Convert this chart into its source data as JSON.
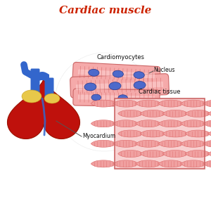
{
  "title": "Cardiac muscle",
  "title_color": "#cc2200",
  "title_fontsize": 11,
  "bg_color": "#ffffff",
  "label_cardiomyocytes": "Cardiomyocytes",
  "label_nucleus": "Nucleus",
  "label_myocardium": "Myocardium",
  "label_cardiac_tissue": "Cardiac tissue",
  "fiber_color": "#f5aaaa",
  "fiber_light": "#fdd0d0",
  "fiber_stripe_color": "#cc5555",
  "fiber_border_color": "#cc6666",
  "nucleus_color": "#4466cc",
  "nucleus_edge": "#223388",
  "heart_red": "#cc1111",
  "heart_dark_red": "#991100",
  "heart_mid_red": "#bb2222",
  "heart_blue": "#3366cc",
  "heart_blue_light": "#5588dd",
  "heart_yellow": "#e8c84a",
  "heart_yellow_dark": "#c8a020",
  "tissue_bg": "#f8d0d0",
  "tissue_fiber": "#f0a0a0",
  "tissue_stripe": "#dd6666",
  "tissue_border": "#cc6666",
  "tissue_dark": "#cc4444",
  "tissue_light": "#fce0e0"
}
